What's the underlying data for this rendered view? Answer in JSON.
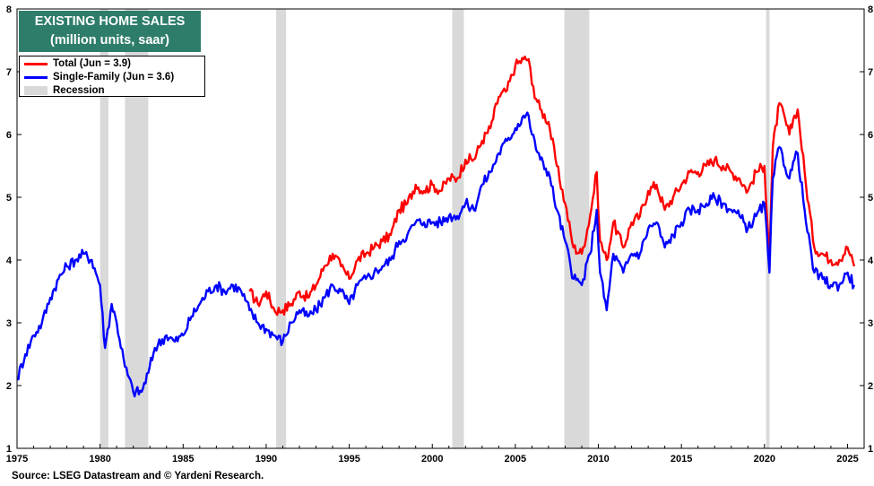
{
  "chart_data": {
    "type": "line",
    "title": "EXISTING HOME SALES",
    "subtitle": "(million units, saar)",
    "source": "Source: LSEG Datastream and © Yardeni Research.",
    "xlim": [
      1975,
      2026
    ],
    "ylim": [
      1,
      8
    ],
    "x_ticks": [
      "1975",
      "1980",
      "1985",
      "1990",
      "1995",
      "2000",
      "2005",
      "2010",
      "2015",
      "2020",
      "2025"
    ],
    "y_ticks": [
      "1",
      "2",
      "3",
      "4",
      "5",
      "6",
      "7",
      "8"
    ],
    "grid": false,
    "legend_placement": "top-left",
    "recession_label": "Recession",
    "recessions": [
      [
        1980.0,
        1980.5
      ],
      [
        1981.5,
        1982.9
      ],
      [
        1990.6,
        1991.2
      ],
      [
        2001.2,
        2001.9
      ],
      [
        2007.95,
        2009.45
      ],
      [
        2020.1,
        2020.3
      ]
    ],
    "series": [
      {
        "name": "Total (Jun = 3.9)",
        "color": "#ff0000",
        "x": [
          1989.0,
          1989.5,
          1990.0,
          1990.5,
          1991.0,
          1991.5,
          1992.0,
          1992.5,
          1993.0,
          1993.5,
          1994.0,
          1994.5,
          1995.0,
          1995.5,
          1996.0,
          1996.5,
          1997.0,
          1997.5,
          1998.0,
          1998.5,
          1999.0,
          1999.5,
          2000.0,
          2000.5,
          2001.0,
          2001.5,
          2002.0,
          2002.5,
          2003.0,
          2003.5,
          2004.0,
          2004.5,
          2005.0,
          2005.5,
          2005.8,
          2006.0,
          2006.5,
          2007.0,
          2007.5,
          2008.0,
          2008.5,
          2009.0,
          2009.5,
          2009.9,
          2010.1,
          2010.5,
          2010.9,
          2011.5,
          2012.0,
          2012.5,
          2013.0,
          2013.5,
          2014.0,
          2014.5,
          2015.0,
          2015.5,
          2016.0,
          2016.5,
          2017.0,
          2017.5,
          2018.0,
          2018.5,
          2019.0,
          2019.5,
          2020.0,
          2020.3,
          2020.5,
          2020.9,
          2021.5,
          2021.8,
          2022.0,
          2022.5,
          2023.0,
          2023.5,
          2024.0,
          2024.5,
          2025.0,
          2025.4
        ],
        "values": [
          3.5,
          3.3,
          3.5,
          3.2,
          3.2,
          3.3,
          3.5,
          3.4,
          3.6,
          3.9,
          4.1,
          3.9,
          3.7,
          4.0,
          4.1,
          4.2,
          4.3,
          4.4,
          4.8,
          4.9,
          5.2,
          5.1,
          5.2,
          5.1,
          5.3,
          5.3,
          5.6,
          5.6,
          5.9,
          6.1,
          6.6,
          6.7,
          7.1,
          7.2,
          7.2,
          6.8,
          6.4,
          6.2,
          5.5,
          4.9,
          4.2,
          4.1,
          4.7,
          5.4,
          4.3,
          4.0,
          4.6,
          4.2,
          4.6,
          4.7,
          5.1,
          5.2,
          4.8,
          5.0,
          5.2,
          5.4,
          5.4,
          5.5,
          5.6,
          5.5,
          5.4,
          5.3,
          5.1,
          5.4,
          5.5,
          4.0,
          5.8,
          6.5,
          6.0,
          6.3,
          6.4,
          5.2,
          4.2,
          4.1,
          4.0,
          4.0,
          4.2,
          3.9
        ]
      },
      {
        "name": "Single-Family  (Jun = 3.6)",
        "color": "#0000ff",
        "x": [
          1975.0,
          1975.5,
          1976.0,
          1976.5,
          1977.0,
          1977.5,
          1978.0,
          1978.5,
          1979.0,
          1979.5,
          1980.0,
          1980.3,
          1980.7,
          1981.0,
          1981.5,
          1982.0,
          1982.5,
          1982.9,
          1983.3,
          1984.0,
          1984.5,
          1985.0,
          1985.5,
          1986.0,
          1986.5,
          1987.0,
          1987.5,
          1988.0,
          1988.5,
          1989.0,
          1989.5,
          1990.0,
          1990.5,
          1991.0,
          1991.5,
          1992.0,
          1992.5,
          1993.0,
          1993.5,
          1994.0,
          1994.5,
          1995.0,
          1995.5,
          1996.0,
          1996.5,
          1997.0,
          1997.5,
          1998.0,
          1998.5,
          1999.0,
          1999.5,
          2000.0,
          2000.5,
          2001.0,
          2001.5,
          2002.0,
          2002.5,
          2003.0,
          2003.5,
          2004.0,
          2004.5,
          2005.0,
          2005.5,
          2005.8,
          2006.0,
          2006.5,
          2007.0,
          2007.5,
          2008.0,
          2008.5,
          2009.0,
          2009.5,
          2009.9,
          2010.1,
          2010.5,
          2010.9,
          2011.5,
          2012.0,
          2012.5,
          2013.0,
          2013.5,
          2014.0,
          2014.5,
          2015.0,
          2015.5,
          2016.0,
          2016.5,
          2017.0,
          2017.5,
          2018.0,
          2018.5,
          2019.0,
          2019.5,
          2020.0,
          2020.3,
          2020.5,
          2020.9,
          2021.5,
          2021.8,
          2022.0,
          2022.5,
          2023.0,
          2023.5,
          2024.0,
          2024.5,
          2025.0,
          2025.4
        ],
        "values": [
          2.1,
          2.5,
          2.8,
          3.0,
          3.4,
          3.7,
          3.9,
          4.0,
          4.1,
          4.0,
          3.6,
          2.6,
          3.3,
          3.0,
          2.3,
          1.9,
          1.9,
          2.2,
          2.6,
          2.8,
          2.7,
          2.8,
          3.1,
          3.3,
          3.5,
          3.6,
          3.5,
          3.6,
          3.5,
          3.2,
          3.0,
          2.9,
          2.8,
          2.7,
          3.0,
          3.2,
          3.1,
          3.2,
          3.4,
          3.6,
          3.5,
          3.3,
          3.6,
          3.7,
          3.8,
          3.9,
          4.0,
          4.3,
          4.4,
          4.6,
          4.6,
          4.6,
          4.6,
          4.7,
          4.7,
          4.9,
          4.8,
          5.2,
          5.4,
          5.7,
          5.9,
          6.1,
          6.3,
          6.3,
          6.0,
          5.6,
          5.4,
          4.8,
          4.3,
          3.7,
          3.6,
          4.1,
          4.8,
          3.8,
          3.2,
          4.1,
          3.8,
          4.1,
          4.1,
          4.5,
          4.6,
          4.2,
          4.4,
          4.6,
          4.8,
          4.8,
          4.9,
          5.0,
          4.9,
          4.8,
          4.7,
          4.5,
          4.7,
          4.9,
          3.8,
          5.3,
          5.8,
          5.3,
          5.6,
          5.7,
          4.6,
          3.8,
          3.7,
          3.6,
          3.6,
          3.8,
          3.6
        ]
      }
    ]
  }
}
